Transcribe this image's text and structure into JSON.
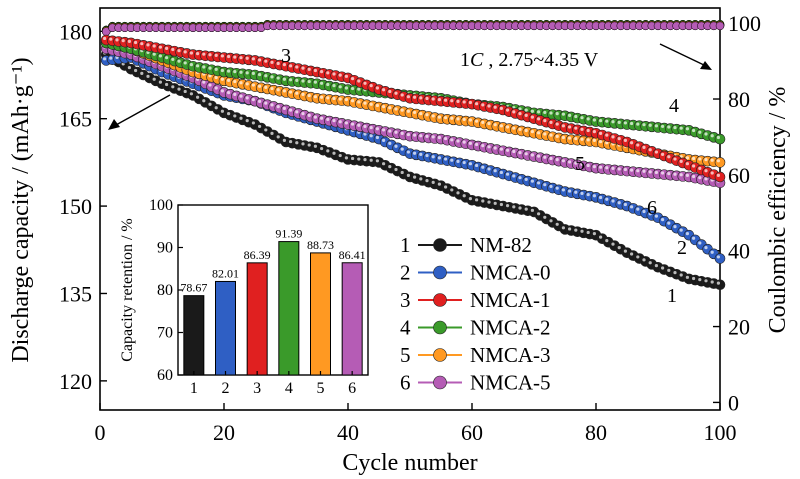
{
  "chart_data": {
    "type": "scatter",
    "xlabel": "Cycle number",
    "ylabel": "Discharge capacity / (mAh·g⁻¹)",
    "ylabel_right": "Coulombic efficiency / %",
    "xlim": [
      0,
      100
    ],
    "ylim": [
      115,
      184
    ],
    "ylim_right": [
      -2,
      104
    ],
    "xticks": [
      "0",
      "20",
      "40",
      "60",
      "80",
      "100"
    ],
    "yticks": [
      "120",
      "135",
      "150",
      "165",
      "180"
    ],
    "yticks_right": [
      "0",
      "20",
      "40",
      "60",
      "80",
      "100"
    ],
    "condition_italic": "C",
    "condition_pre": "1",
    "condition_post": " , 2.75~4.35 V",
    "curve_numbers": [
      "1",
      "2",
      "3",
      "4",
      "5",
      "6"
    ],
    "colors": [
      "#1a1a1a",
      "#2f5fc4",
      "#e02020",
      "#3a9a2a",
      "#ff9922",
      "#b55cb5"
    ],
    "series": [
      {
        "name": "NM-82",
        "legend_no": "1",
        "x": [
          1,
          5,
          10,
          15,
          20,
          25,
          30,
          35,
          40,
          45,
          50,
          55,
          60,
          65,
          70,
          75,
          80,
          85,
          90,
          95,
          100
        ],
        "y": [
          176,
          173.5,
          171,
          169,
          166,
          164,
          161,
          160,
          158,
          157.5,
          155,
          153.5,
          151,
          150,
          149,
          146,
          145,
          142,
          139.5,
          137.5,
          136.5
        ]
      },
      {
        "name": "NMCA-0",
        "legend_no": "2",
        "x": [
          1,
          5,
          10,
          15,
          20,
          25,
          30,
          35,
          40,
          45,
          50,
          55,
          60,
          65,
          70,
          75,
          80,
          85,
          90,
          95,
          100
        ],
        "y": [
          175,
          175.5,
          173,
          171,
          169,
          168,
          166,
          164.5,
          163,
          161.5,
          159,
          158,
          157,
          155.5,
          154,
          152.5,
          151.5,
          150,
          148,
          145,
          141
        ]
      },
      {
        "name": "NMCA-1",
        "legend_no": "3",
        "x": [
          1,
          5,
          10,
          15,
          20,
          25,
          30,
          35,
          40,
          45,
          50,
          55,
          60,
          65,
          70,
          75,
          80,
          85,
          90,
          95,
          100
        ],
        "y": [
          178.5,
          178,
          177,
          176,
          175.5,
          175,
          174,
          173,
          172,
          170,
          168.5,
          168,
          167.5,
          166.5,
          165,
          163.5,
          162.5,
          161,
          159,
          157,
          155
        ]
      },
      {
        "name": "NMCA-2",
        "legend_no": "4",
        "x": [
          1,
          5,
          10,
          15,
          20,
          25,
          30,
          35,
          40,
          45,
          50,
          55,
          60,
          65,
          70,
          75,
          80,
          85,
          90,
          95,
          100
        ],
        "y": [
          178,
          177,
          175.5,
          174,
          173,
          172.5,
          171.5,
          171,
          170,
          169.5,
          169,
          168.5,
          167.5,
          167,
          166,
          165.5,
          164.5,
          164,
          163.5,
          163,
          161.5
        ]
      },
      {
        "name": "NMCA-3",
        "legend_no": "5",
        "x": [
          1,
          5,
          10,
          15,
          20,
          25,
          30,
          35,
          40,
          45,
          50,
          55,
          60,
          65,
          70,
          75,
          80,
          85,
          90,
          95,
          100
        ],
        "y": [
          178,
          177,
          175,
          173,
          171.5,
          170.5,
          169.5,
          168.5,
          168,
          167,
          166,
          165,
          164.5,
          163.5,
          162.5,
          161.5,
          161,
          160,
          159,
          158,
          157.5
        ]
      },
      {
        "name": "NMCA-5",
        "legend_no": "6",
        "x": [
          1,
          5,
          10,
          15,
          20,
          25,
          30,
          35,
          40,
          45,
          50,
          55,
          60,
          65,
          70,
          75,
          80,
          85,
          90,
          95,
          100
        ],
        "y": [
          177,
          176,
          174,
          172,
          169.5,
          168,
          166.5,
          165,
          164,
          163,
          162,
          161.5,
          160.5,
          159.5,
          158.5,
          157.5,
          156.5,
          156,
          155.5,
          155,
          154
        ]
      }
    ],
    "efficiency": {
      "x_start": 1,
      "x_end": 100,
      "values": [
        98,
        99,
        99.5,
        99.5,
        99.5
      ]
    },
    "inset": {
      "type": "bar",
      "ylabel": "Capacity retention / %",
      "ylim": [
        60,
        100
      ],
      "yticks": [
        "60",
        "70",
        "80",
        "90",
        "100"
      ],
      "categories": [
        "1",
        "2",
        "3",
        "4",
        "5",
        "6"
      ],
      "values": [
        78.67,
        82.01,
        86.39,
        91.39,
        88.73,
        86.41
      ],
      "value_labels": [
        "78.67",
        "82.01",
        "86.39",
        "91.39",
        "88.73",
        "86.41"
      ]
    }
  }
}
